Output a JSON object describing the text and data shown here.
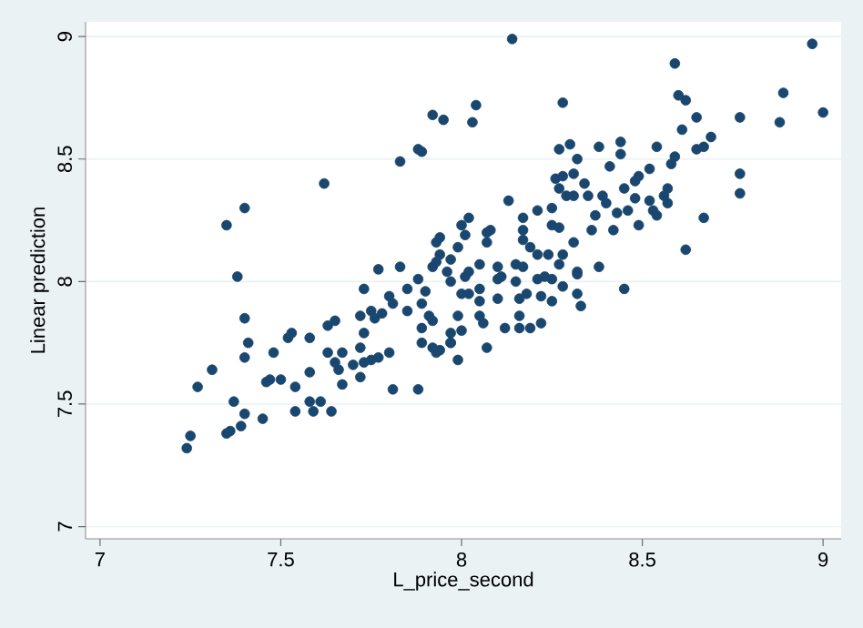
{
  "chart_data": {
    "type": "scatter",
    "xlabel": "L_price_second",
    "ylabel": "Linear prediction",
    "color": "#1a476f",
    "marker": "circle",
    "grid": "y",
    "xlim": [
      6.96,
      9.05
    ],
    "ylim": [
      6.95,
      9.06
    ],
    "xticks": [
      7,
      7.5,
      8,
      8.5,
      9
    ],
    "yticks": [
      7,
      7.5,
      8,
      8.5,
      9
    ],
    "x": [
      7.35,
      7.4,
      7.38,
      7.62,
      7.83,
      7.88,
      7.89,
      7.92,
      7.95,
      7.94,
      7.93,
      7.77,
      7.83,
      7.73,
      7.92,
      7.93,
      7.96,
      7.97,
      7.88,
      8.14,
      8.97,
      8.59,
      8.6,
      8.62,
      8.89,
      8.03,
      8.04,
      8.28,
      8.65,
      8.77,
      8.88,
      9.0,
      8.61,
      8.69,
      8.67,
      8.65,
      8.77,
      8.77,
      8.67,
      8.62,
      8.54,
      8.59,
      8.58,
      8.52,
      8.44,
      8.44,
      8.38,
      8.41,
      8.3,
      8.27,
      8.32,
      8.31,
      8.26,
      8.28,
      8.34,
      8.27,
      8.29,
      8.31,
      8.35,
      8.39,
      8.4,
      8.49,
      8.48,
      8.45,
      8.48,
      8.52,
      8.57,
      8.56,
      8.57,
      8.53,
      8.54,
      8.46,
      8.43,
      8.37,
      8.36,
      8.42,
      8.49,
      8.13,
      8.21,
      8.25,
      8.17,
      8.25,
      8.27,
      8.17,
      8.17,
      8.19,
      8.21,
      8.24,
      8.28,
      8.31,
      8.27,
      8.32,
      8.38,
      8.15,
      8.17,
      8.1,
      8.05,
      8.07,
      8.08,
      8.07,
      8.01,
      8.0,
      8.02,
      7.99,
      7.97,
      7.94,
      8.02,
      8.1,
      8.21,
      8.23,
      8.25,
      8.28,
      8.45,
      8.15,
      8.01,
      8.11,
      8.32,
      8.32,
      8.33,
      8.25,
      8.22,
      8.18,
      8.16,
      8.1,
      8.05,
      8.05,
      8.02,
      8.0,
      7.99,
      8.05,
      8.06,
      8.12,
      8.16,
      8.16,
      8.19,
      8.22,
      8.0,
      7.97,
      7.97,
      7.94,
      7.99,
      8.07,
      7.4,
      7.41,
      7.4,
      7.31,
      7.27,
      7.37,
      7.4,
      7.45,
      7.39,
      7.36,
      7.35,
      7.25,
      7.24,
      7.46,
      7.47,
      7.5,
      7.48,
      7.52,
      7.53,
      7.54,
      7.54,
      7.58,
      7.58,
      7.58,
      7.59,
      7.61,
      7.63,
      7.65,
      7.63,
      7.67,
      7.65,
      7.66,
      7.67,
      7.64,
      7.72,
      7.73,
      7.72,
      7.7,
      7.73,
      7.72,
      7.75,
      7.75,
      7.76,
      7.78,
      7.77,
      7.8,
      7.8,
      7.81,
      7.85,
      7.85,
      7.81,
      7.88,
      7.9,
      7.89,
      7.91,
      7.92,
      7.89,
      7.89,
      7.92,
      7.93,
      7.97
    ],
    "values": [
      8.23,
      8.3,
      8.02,
      8.4,
      8.49,
      8.54,
      8.53,
      8.68,
      8.66,
      8.18,
      8.16,
      8.05,
      8.06,
      7.97,
      8.06,
      8.08,
      8.04,
      8.0,
      8.01,
      8.99,
      8.97,
      8.89,
      8.76,
      8.74,
      8.77,
      8.65,
      8.72,
      8.73,
      8.67,
      8.67,
      8.65,
      8.69,
      8.62,
      8.59,
      8.55,
      8.54,
      8.44,
      8.36,
      8.26,
      8.13,
      8.55,
      8.51,
      8.48,
      8.46,
      8.57,
      8.52,
      8.55,
      8.47,
      8.56,
      8.54,
      8.5,
      8.44,
      8.42,
      8.43,
      8.4,
      8.38,
      8.35,
      8.35,
      8.35,
      8.35,
      8.32,
      8.43,
      8.41,
      8.38,
      8.34,
      8.33,
      8.38,
      8.35,
      8.32,
      8.29,
      8.27,
      8.29,
      8.28,
      8.27,
      8.21,
      8.21,
      8.23,
      8.33,
      8.29,
      8.3,
      8.26,
      8.23,
      8.22,
      8.21,
      8.17,
      8.14,
      8.11,
      8.11,
      8.11,
      8.16,
      8.07,
      8.04,
      8.06,
      8.07,
      8.06,
      8.06,
      8.07,
      8.2,
      8.21,
      8.16,
      8.19,
      8.23,
      8.26,
      8.14,
      8.09,
      8.11,
      8.04,
      8.01,
      8.01,
      8.02,
      8.01,
      7.98,
      7.97,
      8.0,
      8.02,
      8.02,
      8.03,
      7.95,
      7.9,
      7.92,
      7.94,
      7.95,
      7.93,
      7.93,
      7.97,
      7.92,
      7.95,
      7.95,
      7.86,
      7.86,
      7.83,
      7.81,
      7.81,
      7.86,
      7.81,
      7.83,
      7.8,
      7.79,
      7.75,
      7.72,
      7.68,
      7.73,
      7.85,
      7.75,
      7.69,
      7.64,
      7.57,
      7.51,
      7.46,
      7.44,
      7.41,
      7.39,
      7.38,
      7.37,
      7.32,
      7.59,
      7.6,
      7.6,
      7.71,
      7.77,
      7.79,
      7.57,
      7.47,
      7.77,
      7.63,
      7.51,
      7.47,
      7.51,
      7.82,
      7.84,
      7.71,
      7.71,
      7.67,
      7.64,
      7.58,
      7.47,
      7.86,
      7.79,
      7.73,
      7.66,
      7.67,
      7.61,
      7.68,
      7.88,
      7.85,
      7.87,
      7.69,
      7.71,
      7.94,
      7.91,
      7.88,
      7.97,
      7.56,
      7.56,
      7.96,
      7.91,
      7.86,
      7.84,
      7.81,
      7.75,
      7.73,
      7.71,
      7.75
    ]
  }
}
